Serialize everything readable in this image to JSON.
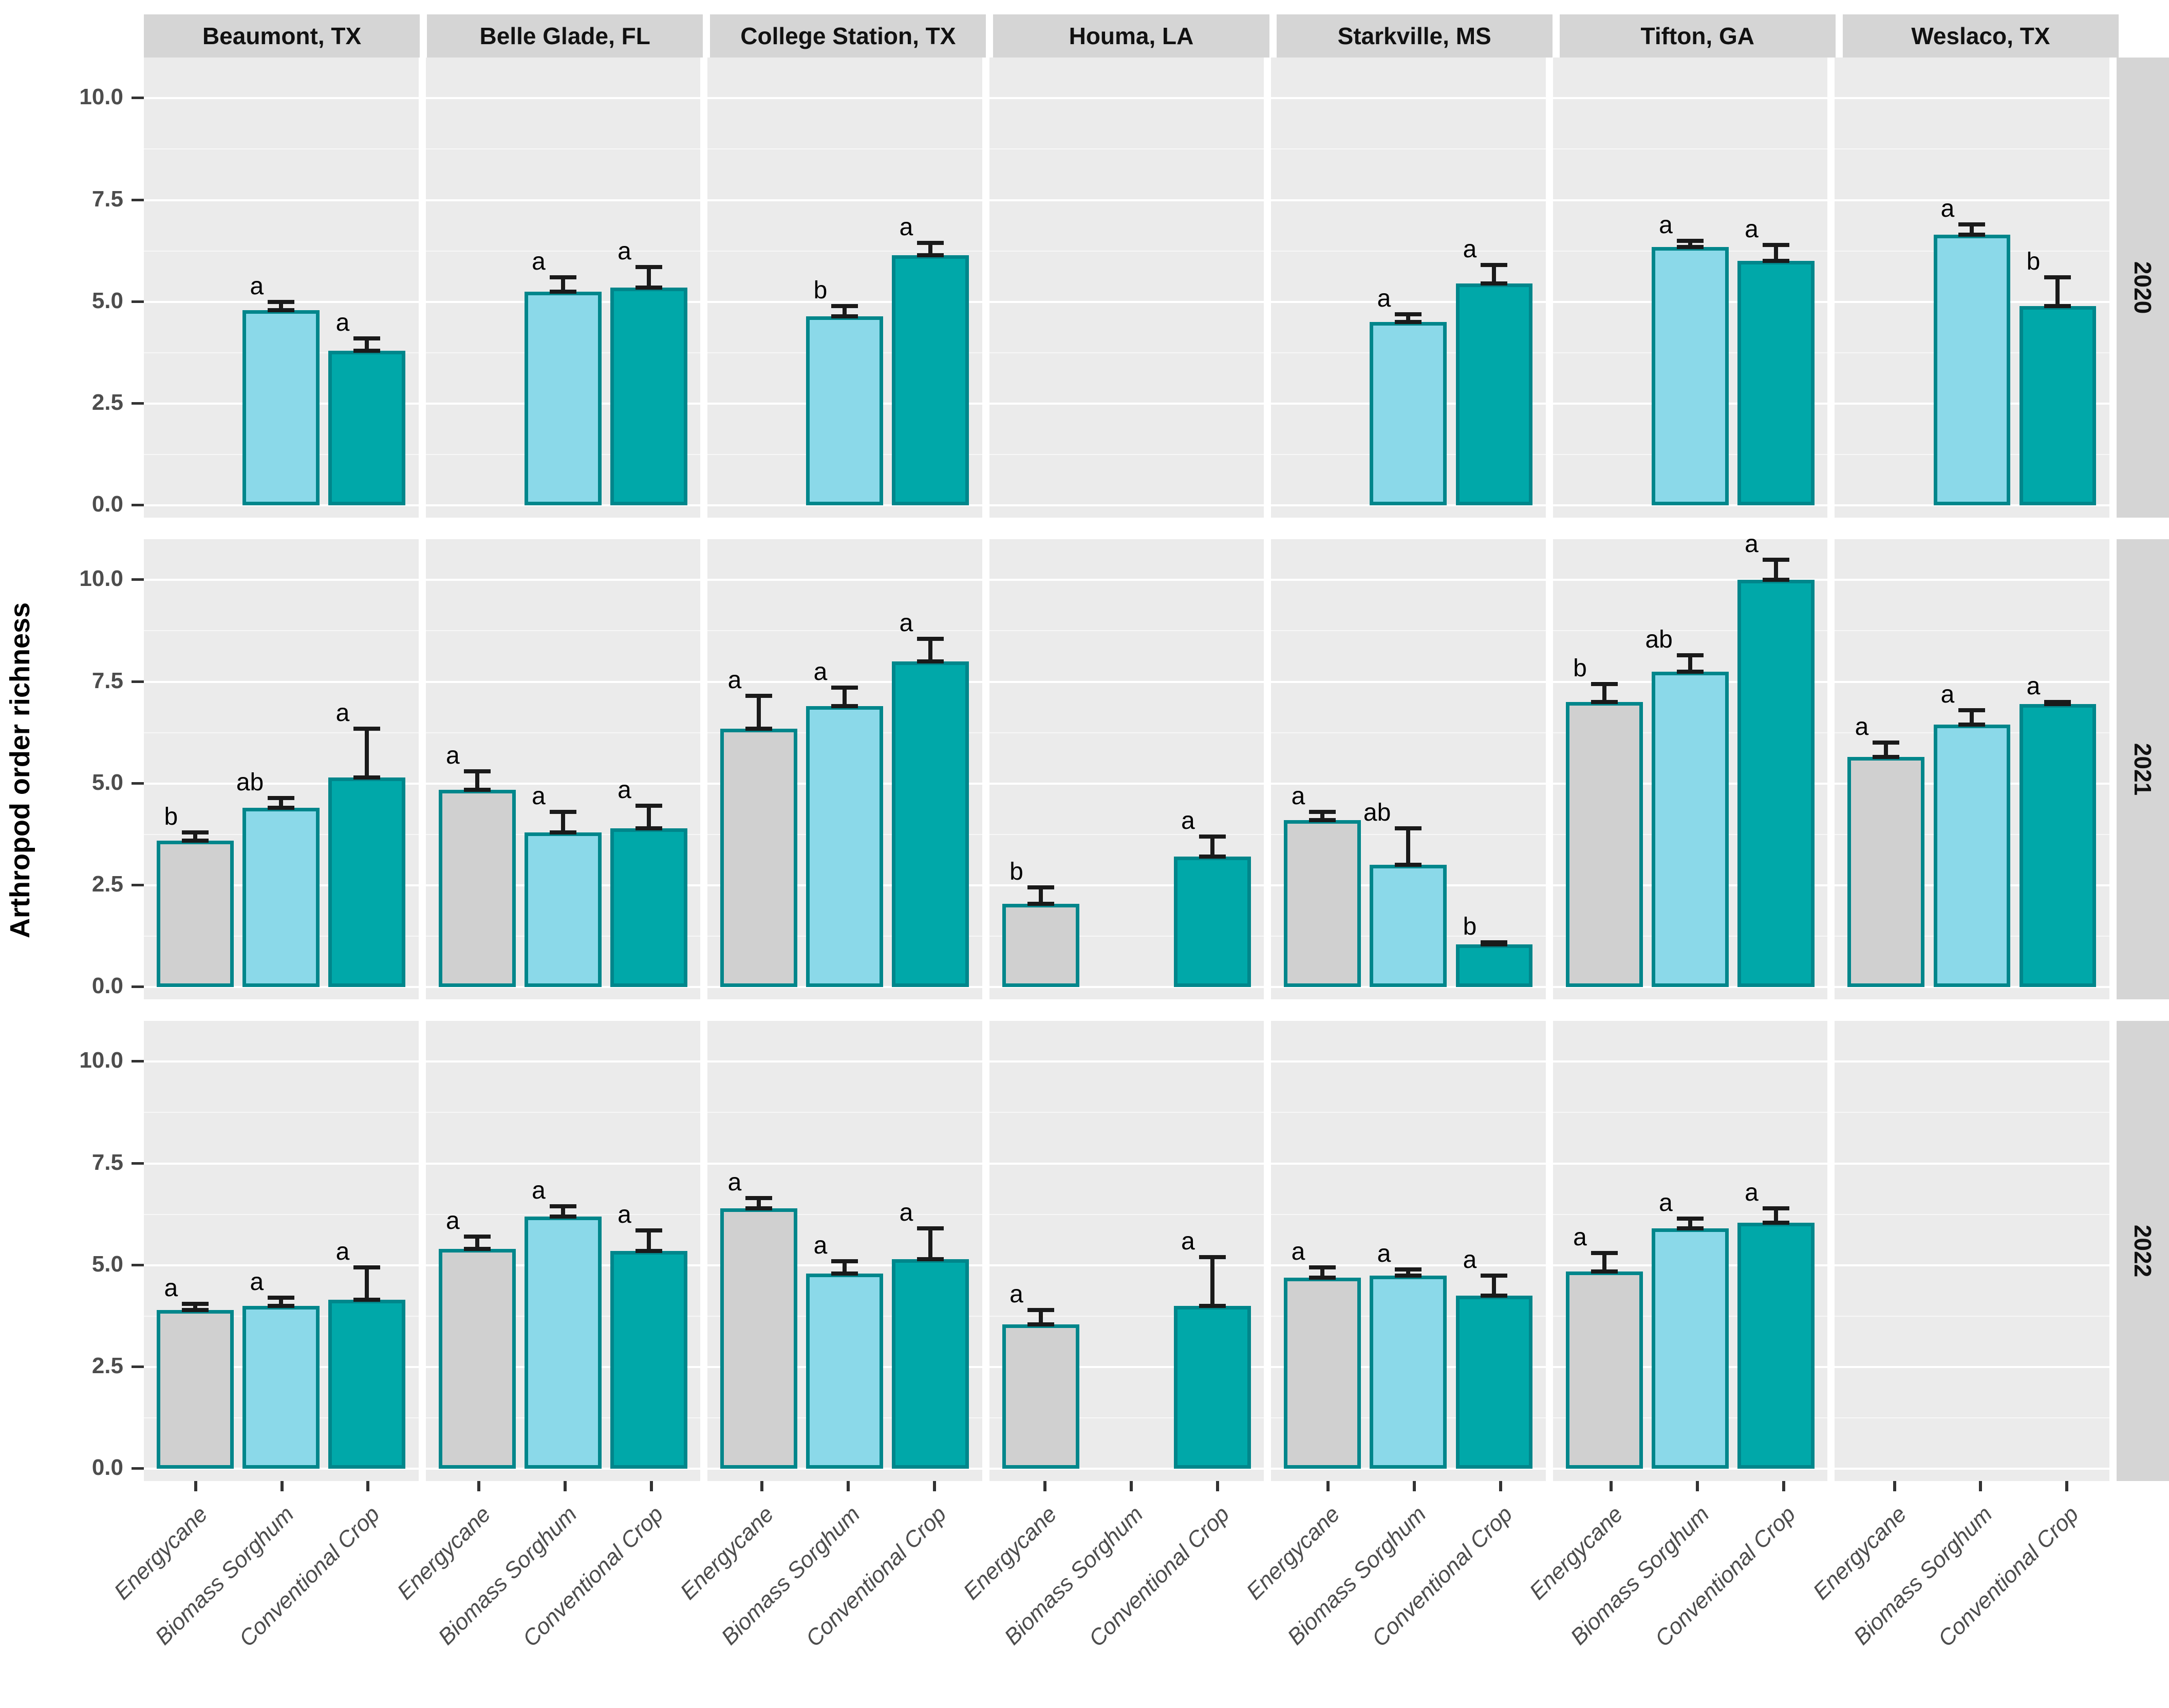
{
  "chart_data": {
    "type": "bar",
    "title": "",
    "ylabel": "Arthropod order richness",
    "xlabel": "",
    "grid": "on",
    "legend": "none",
    "y_tick_labels": [
      "0.0",
      "2.5",
      "5.0",
      "7.5",
      "10.0"
    ],
    "y_tick_values": [
      0,
      2.5,
      5,
      7.5,
      10
    ],
    "y_minor_values": [
      1.25,
      3.75,
      6.25,
      8.75
    ],
    "ylim": [
      0,
      10.5
    ],
    "col_facets": [
      "Beaumont, TX",
      "Belle Glade, FL",
      "College Station, TX",
      "Houma, LA",
      "Starkville, MS",
      "Tifton, GA",
      "Weslaco, TX"
    ],
    "row_facets": [
      "2020",
      "2021",
      "2022"
    ],
    "categories": [
      "Energycane",
      "Biomass Sorghum",
      "Conventional Crop"
    ],
    "series_colors": {
      "Energycane": "#d0d0d0",
      "Biomass Sorghum": "#8bd9e9",
      "Conventional Crop": "#00a8a9"
    },
    "bar_outline_color": "#00868b",
    "panel_bg": "#ebebeb",
    "strip_bg": "#d5d5d5",
    "error_bar_color": "#1a1a1a",
    "panels": [
      {
        "year": "2020",
        "location": "Beaumont, TX",
        "bars": [
          {
            "treatment": "Biomass Sorghum",
            "value": 4.8,
            "error": 0.2,
            "letter": "a"
          },
          {
            "treatment": "Conventional Crop",
            "value": 3.8,
            "error": 0.3,
            "letter": "a"
          }
        ]
      },
      {
        "year": "2020",
        "location": "Belle Glade, FL",
        "bars": [
          {
            "treatment": "Biomass Sorghum",
            "value": 5.25,
            "error": 0.35,
            "letter": "a"
          },
          {
            "treatment": "Conventional Crop",
            "value": 5.35,
            "error": 0.5,
            "letter": "a"
          }
        ]
      },
      {
        "year": "2020",
        "location": "College Station, TX",
        "bars": [
          {
            "treatment": "Biomass Sorghum",
            "value": 4.65,
            "error": 0.25,
            "letter": "b"
          },
          {
            "treatment": "Conventional Crop",
            "value": 6.15,
            "error": 0.3,
            "letter": "a"
          }
        ]
      },
      {
        "year": "2020",
        "location": "Houma, LA",
        "bars": []
      },
      {
        "year": "2020",
        "location": "Starkville, MS",
        "bars": [
          {
            "treatment": "Biomass Sorghum",
            "value": 4.5,
            "error": 0.2,
            "letter": "a"
          },
          {
            "treatment": "Conventional Crop",
            "value": 5.45,
            "error": 0.45,
            "letter": "a"
          }
        ]
      },
      {
        "year": "2020",
        "location": "Tifton, GA",
        "bars": [
          {
            "treatment": "Biomass Sorghum",
            "value": 6.35,
            "error": 0.15,
            "letter": "a"
          },
          {
            "treatment": "Conventional Crop",
            "value": 6.0,
            "error": 0.4,
            "letter": "a"
          }
        ]
      },
      {
        "year": "2020",
        "location": "Weslaco, TX",
        "bars": [
          {
            "treatment": "Biomass Sorghum",
            "value": 6.65,
            "error": 0.25,
            "letter": "a"
          },
          {
            "treatment": "Conventional Crop",
            "value": 4.9,
            "error": 0.7,
            "letter": "b"
          }
        ]
      },
      {
        "year": "2021",
        "location": "Beaumont, TX",
        "bars": [
          {
            "treatment": "Energycane",
            "value": 3.6,
            "error": 0.2,
            "letter": "b"
          },
          {
            "treatment": "Biomass Sorghum",
            "value": 4.4,
            "error": 0.25,
            "letter": "ab"
          },
          {
            "treatment": "Conventional Crop",
            "value": 5.15,
            "error": 1.2,
            "letter": "a"
          }
        ]
      },
      {
        "year": "2021",
        "location": "Belle Glade, FL",
        "bars": [
          {
            "treatment": "Energycane",
            "value": 4.85,
            "error": 0.45,
            "letter": "a"
          },
          {
            "treatment": "Biomass Sorghum",
            "value": 3.8,
            "error": 0.5,
            "letter": "a"
          },
          {
            "treatment": "Conventional Crop",
            "value": 3.9,
            "error": 0.55,
            "letter": "a"
          }
        ]
      },
      {
        "year": "2021",
        "location": "College Station, TX",
        "bars": [
          {
            "treatment": "Energycane",
            "value": 6.35,
            "error": 0.8,
            "letter": "a"
          },
          {
            "treatment": "Biomass Sorghum",
            "value": 6.9,
            "error": 0.45,
            "letter": "a"
          },
          {
            "treatment": "Conventional Crop",
            "value": 8.0,
            "error": 0.55,
            "letter": "a"
          }
        ]
      },
      {
        "year": "2021",
        "location": "Houma, LA",
        "bars": [
          {
            "treatment": "Energycane",
            "value": 2.05,
            "error": 0.4,
            "letter": "b"
          },
          {
            "treatment": "Conventional Crop",
            "value": 3.2,
            "error": 0.5,
            "letter": "a"
          }
        ]
      },
      {
        "year": "2021",
        "location": "Starkville, MS",
        "bars": [
          {
            "treatment": "Energycane",
            "value": 4.1,
            "error": 0.2,
            "letter": "a"
          },
          {
            "treatment": "Biomass Sorghum",
            "value": 3.0,
            "error": 0.9,
            "letter": "ab"
          },
          {
            "treatment": "Conventional Crop",
            "value": 1.05,
            "error": 0.05,
            "letter": "b"
          }
        ]
      },
      {
        "year": "2021",
        "location": "Tifton, GA",
        "bars": [
          {
            "treatment": "Energycane",
            "value": 7.0,
            "error": 0.45,
            "letter": "b"
          },
          {
            "treatment": "Biomass Sorghum",
            "value": 7.75,
            "error": 0.4,
            "letter": "ab"
          },
          {
            "treatment": "Conventional Crop",
            "value": 10.0,
            "error": 0.5,
            "letter": "a"
          }
        ]
      },
      {
        "year": "2021",
        "location": "Weslaco, TX",
        "bars": [
          {
            "treatment": "Energycane",
            "value": 5.65,
            "error": 0.35,
            "letter": "a"
          },
          {
            "treatment": "Biomass Sorghum",
            "value": 6.45,
            "error": 0.35,
            "letter": "a"
          },
          {
            "treatment": "Conventional Crop",
            "value": 6.95,
            "error": 0.05,
            "letter": "a"
          }
        ]
      },
      {
        "year": "2022",
        "location": "Beaumont, TX",
        "bars": [
          {
            "treatment": "Energycane",
            "value": 3.9,
            "error": 0.15,
            "letter": "a"
          },
          {
            "treatment": "Biomass Sorghum",
            "value": 4.0,
            "error": 0.2,
            "letter": "a"
          },
          {
            "treatment": "Conventional Crop",
            "value": 4.15,
            "error": 0.8,
            "letter": "a"
          }
        ]
      },
      {
        "year": "2022",
        "location": "Belle Glade, FL",
        "bars": [
          {
            "treatment": "Energycane",
            "value": 5.4,
            "error": 0.3,
            "letter": "a"
          },
          {
            "treatment": "Biomass Sorghum",
            "value": 6.2,
            "error": 0.25,
            "letter": "a"
          },
          {
            "treatment": "Conventional Crop",
            "value": 5.35,
            "error": 0.5,
            "letter": "a"
          }
        ]
      },
      {
        "year": "2022",
        "location": "College Station, TX",
        "bars": [
          {
            "treatment": "Energycane",
            "value": 6.4,
            "error": 0.25,
            "letter": "a"
          },
          {
            "treatment": "Biomass Sorghum",
            "value": 4.8,
            "error": 0.3,
            "letter": "a"
          },
          {
            "treatment": "Conventional Crop",
            "value": 5.15,
            "error": 0.75,
            "letter": "a"
          }
        ]
      },
      {
        "year": "2022",
        "location": "Houma, LA",
        "bars": [
          {
            "treatment": "Energycane",
            "value": 3.55,
            "error": 0.35,
            "letter": "a"
          },
          {
            "treatment": "Conventional Crop",
            "value": 4.0,
            "error": 1.2,
            "letter": "a"
          }
        ]
      },
      {
        "year": "2022",
        "location": "Starkville, MS",
        "bars": [
          {
            "treatment": "Energycane",
            "value": 4.7,
            "error": 0.25,
            "letter": "a"
          },
          {
            "treatment": "Biomass Sorghum",
            "value": 4.75,
            "error": 0.15,
            "letter": "a"
          },
          {
            "treatment": "Conventional Crop",
            "value": 4.25,
            "error": 0.5,
            "letter": "a"
          }
        ]
      },
      {
        "year": "2022",
        "location": "Tifton, GA",
        "bars": [
          {
            "treatment": "Energycane",
            "value": 4.85,
            "error": 0.45,
            "letter": "a"
          },
          {
            "treatment": "Biomass Sorghum",
            "value": 5.9,
            "error": 0.25,
            "letter": "a"
          },
          {
            "treatment": "Conventional Crop",
            "value": 6.05,
            "error": 0.35,
            "letter": "a"
          }
        ]
      },
      {
        "year": "2022",
        "location": "Weslaco, TX",
        "bars": []
      }
    ]
  }
}
